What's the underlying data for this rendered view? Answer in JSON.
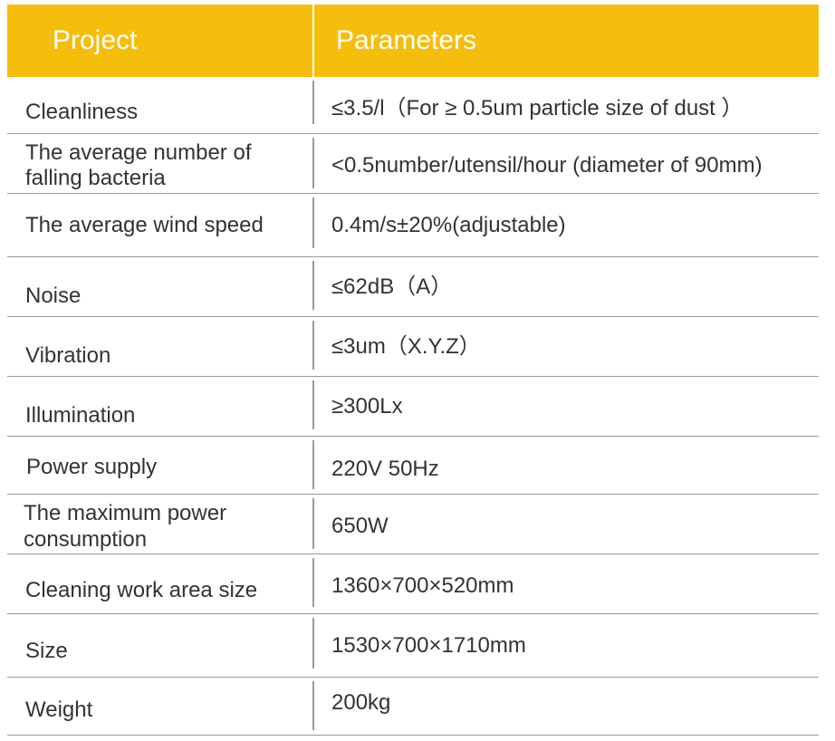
{
  "header": {
    "col1": "Project",
    "col2": "Parameters"
  },
  "rows": [
    {
      "label": "Cleanliness",
      "value": "≤3.5/l（For ≥ 0.5um particle size of dust ）"
    },
    {
      "label_line1": "The average number of",
      "label_line2": "falling bacteria",
      "value": "<0.5number/utensil/hour (diameter of 90mm)"
    },
    {
      "label": "The average wind speed",
      "value": "0.4m/s±20%(adjustable)"
    },
    {
      "label": "Noise",
      "value": "≤62dB（A）"
    },
    {
      "label": "Vibration",
      "value": "≤3um（X.Y.Z）"
    },
    {
      "label": "Illumination",
      "value": "≥300Lx"
    },
    {
      "label": "Power supply",
      "value": "220V 50Hz"
    },
    {
      "label_line1": "The maximum power",
      "label_line2": "consumption",
      "value": "650W"
    },
    {
      "label": "Cleaning work area size",
      "value": "1360×700×520mm"
    },
    {
      "label": "Size",
      "value": "1530×700×1710mm"
    },
    {
      "label": "Weight",
      "value": "200kg"
    }
  ]
}
